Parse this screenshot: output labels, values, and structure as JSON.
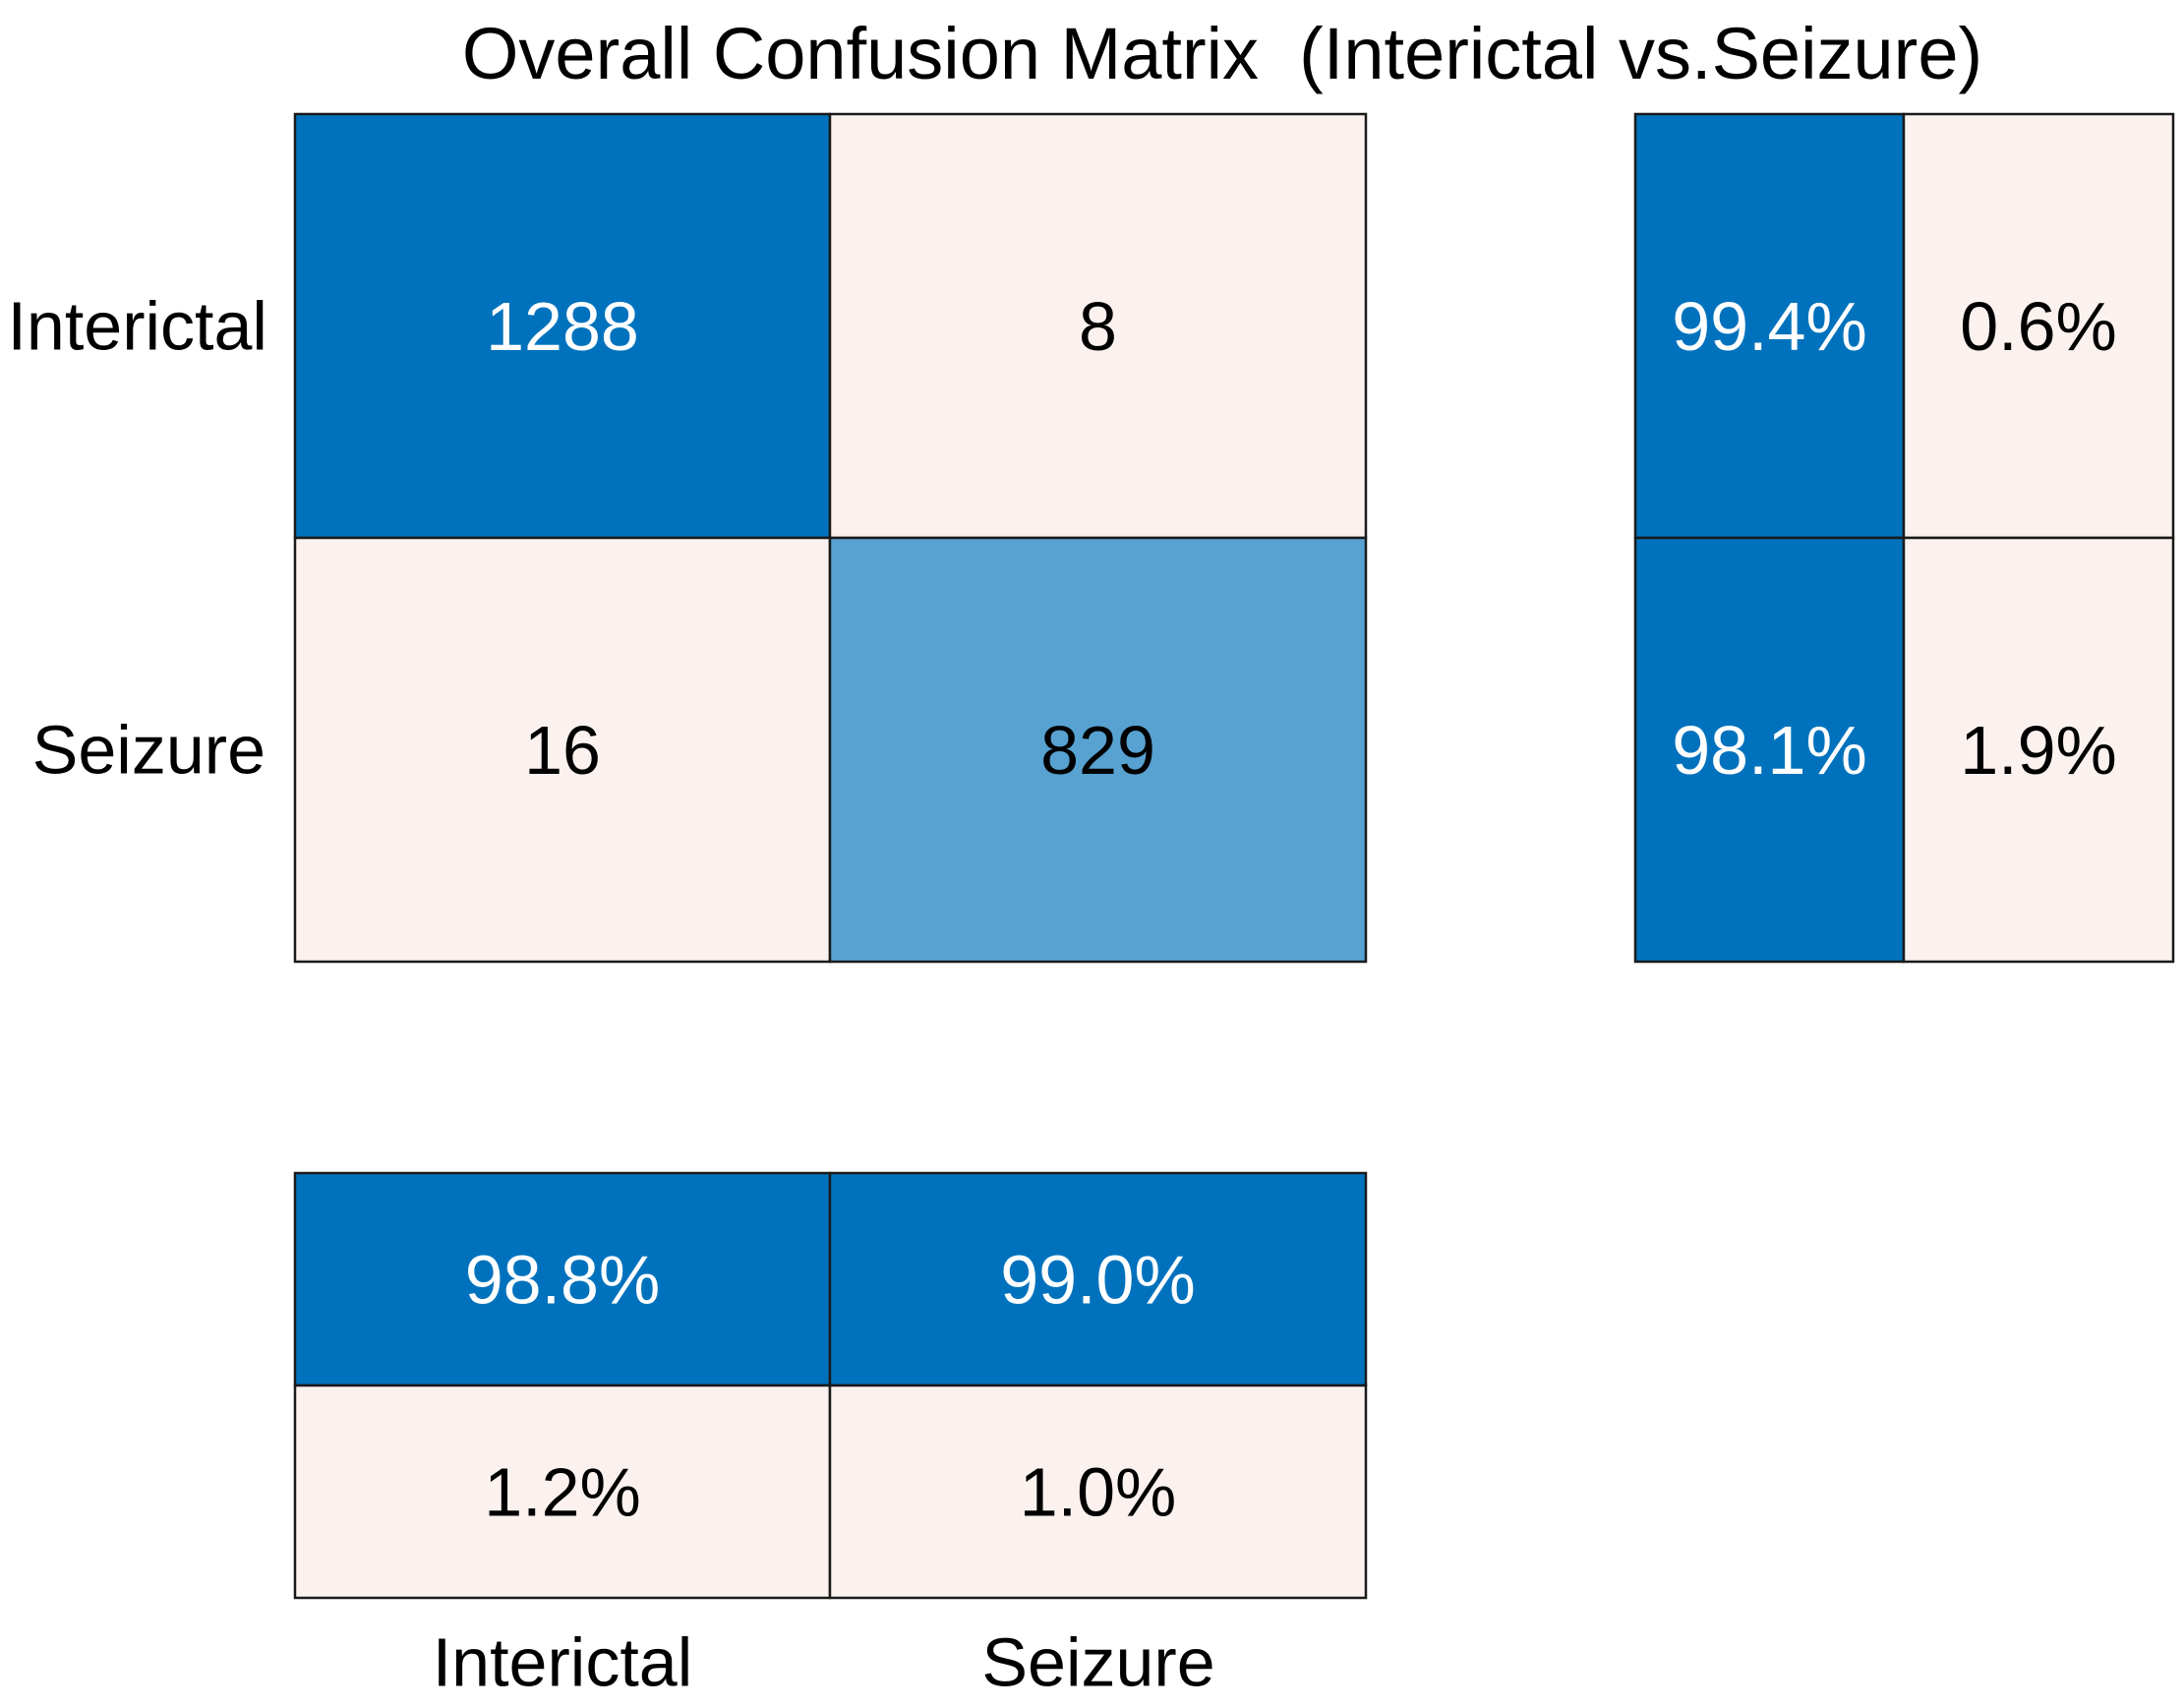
{
  "chart_data": {
    "type": "heatmap",
    "title": "Overall Confusion Matrix  (Interictal vs.Seizure)",
    "row_labels": [
      "Interictal",
      "Seizure"
    ],
    "column_labels": [
      "Interictal",
      "Seizure"
    ],
    "matrix": {
      "values": [
        [
          1288,
          8
        ],
        [
          16,
          829
        ]
      ],
      "display": [
        [
          "1288",
          "8"
        ],
        [
          "16",
          "829"
        ]
      ]
    },
    "row_summary": {
      "values": [
        [
          99.4,
          0.6
        ],
        [
          98.1,
          1.9
        ]
      ],
      "display": [
        [
          "99.4%",
          "0.6%"
        ],
        [
          "98.1%",
          "1.9%"
        ]
      ]
    },
    "column_summary": {
      "values": [
        [
          98.8,
          99.0
        ],
        [
          1.2,
          1.0
        ]
      ],
      "display": [
        [
          "98.8%",
          "99.0%"
        ],
        [
          "1.2%",
          "1.0%"
        ]
      ]
    },
    "colors": {
      "strong": "#0072bd",
      "medium": "#57a2d1",
      "light": "#fbf2ef",
      "text_dark": "#000000",
      "text_light": "#ffffff"
    }
  }
}
